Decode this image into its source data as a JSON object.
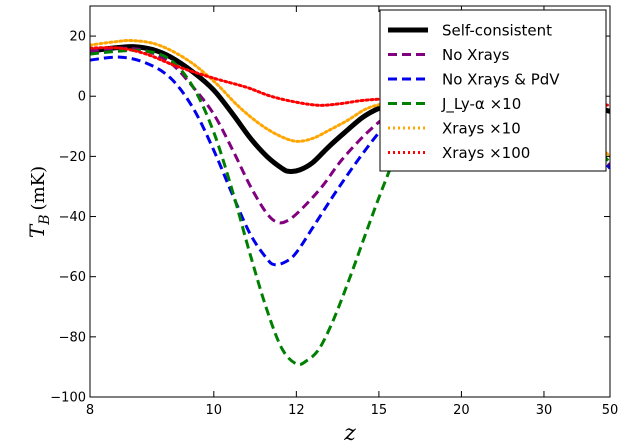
{
  "chart_data": {
    "type": "line",
    "x_axis": {
      "label": "z",
      "ticks": [
        8,
        10,
        12,
        15,
        20,
        30,
        50
      ],
      "range": [
        8,
        50
      ],
      "scale": "reciprocal (1/z)"
    },
    "y_axis": {
      "label_main": "T",
      "label_sub": "B",
      "label_unit": "(mK)",
      "ticks": [
        20,
        0,
        -20,
        -40,
        -60,
        -80,
        -100
      ],
      "range": [
        -100,
        30
      ]
    },
    "grid": false,
    "legend": {
      "placement": "top-right"
    },
    "series": [
      {
        "name": "Self-consistent",
        "color": "#000000",
        "style": "solid",
        "width": 5,
        "points": [
          [
            8,
            15
          ],
          [
            8.3,
            16
          ],
          [
            8.6,
            16.5
          ],
          [
            8.9,
            15.5
          ],
          [
            9.2,
            13
          ],
          [
            9.6,
            8
          ],
          [
            10,
            2
          ],
          [
            10.4,
            -6
          ],
          [
            10.8,
            -14
          ],
          [
            11.2,
            -20
          ],
          [
            11.6,
            -24
          ],
          [
            11.8,
            -25
          ],
          [
            12.1,
            -24.5
          ],
          [
            12.5,
            -22
          ],
          [
            13,
            -17
          ],
          [
            13.6,
            -12
          ],
          [
            14.3,
            -7
          ],
          [
            15,
            -4
          ],
          [
            16,
            -1.5
          ],
          [
            17,
            -0.5
          ],
          [
            18.5,
            0
          ],
          [
            20,
            0
          ],
          [
            25,
            -0.5
          ],
          [
            30,
            -1
          ],
          [
            40,
            -3
          ],
          [
            50,
            -5
          ]
        ]
      },
      {
        "name": "No Xrays",
        "color": "#800080",
        "style": "dashed",
        "width": 3,
        "points": [
          [
            8,
            15
          ],
          [
            8.4,
            16
          ],
          [
            8.8,
            15
          ],
          [
            9.2,
            11
          ],
          [
            9.6,
            3
          ],
          [
            10,
            -6
          ],
          [
            10.4,
            -18
          ],
          [
            10.8,
            -30
          ],
          [
            11.2,
            -39
          ],
          [
            11.5,
            -42
          ],
          [
            11.8,
            -41
          ],
          [
            12.2,
            -37
          ],
          [
            12.8,
            -30
          ],
          [
            13.5,
            -21
          ],
          [
            14.5,
            -12
          ],
          [
            15.5,
            -6
          ],
          [
            16.5,
            -3
          ],
          [
            18,
            -1
          ],
          [
            20,
            0
          ],
          [
            30,
            -1
          ],
          [
            50,
            -23
          ]
        ]
      },
      {
        "name": "No Xrays & PdV",
        "color": "#0000ee",
        "style": "dashed",
        "width": 3,
        "points": [
          [
            8,
            12
          ],
          [
            8.4,
            13
          ],
          [
            8.8,
            11
          ],
          [
            9.2,
            6
          ],
          [
            9.6,
            -4
          ],
          [
            10,
            -18
          ],
          [
            10.4,
            -33
          ],
          [
            10.8,
            -46
          ],
          [
            11.2,
            -54
          ],
          [
            11.4,
            -56
          ],
          [
            11.7,
            -55
          ],
          [
            12,
            -52
          ],
          [
            12.6,
            -42
          ],
          [
            13.4,
            -30
          ],
          [
            14.4,
            -18
          ],
          [
            15.4,
            -9
          ],
          [
            16.5,
            -4
          ],
          [
            18,
            -1
          ],
          [
            20,
            0
          ],
          [
            30,
            -1
          ],
          [
            50,
            -24
          ]
        ]
      },
      {
        "name": "J_Ly-α ×10",
        "color": "#008000",
        "style": "dashed",
        "width": 3,
        "points": [
          [
            8,
            14
          ],
          [
            8.4,
            15
          ],
          [
            8.8,
            15
          ],
          [
            9.2,
            12
          ],
          [
            9.6,
            3
          ],
          [
            10,
            -12
          ],
          [
            10.4,
            -32
          ],
          [
            10.8,
            -53
          ],
          [
            11.2,
            -71
          ],
          [
            11.6,
            -84
          ],
          [
            12,
            -89
          ],
          [
            12.3,
            -88
          ],
          [
            12.7,
            -84
          ],
          [
            13.2,
            -74
          ],
          [
            13.8,
            -60
          ],
          [
            14.5,
            -44
          ],
          [
            15.2,
            -30
          ],
          [
            16,
            -17
          ],
          [
            17,
            -8
          ],
          [
            18.5,
            -2
          ],
          [
            20,
            0
          ],
          [
            30,
            -1
          ],
          [
            50,
            -22
          ]
        ]
      },
      {
        "name": "Xrays ×10",
        "color": "#ffa500",
        "style": "dotted",
        "width": 3,
        "points": [
          [
            8,
            17
          ],
          [
            8.3,
            18
          ],
          [
            8.6,
            18.5
          ],
          [
            9,
            17
          ],
          [
            9.5,
            12
          ],
          [
            10,
            5
          ],
          [
            10.5,
            -3
          ],
          [
            11,
            -9
          ],
          [
            11.5,
            -13
          ],
          [
            12,
            -15
          ],
          [
            12.5,
            -14
          ],
          [
            13,
            -11.5
          ],
          [
            13.7,
            -8
          ],
          [
            14.5,
            -4
          ],
          [
            15.5,
            -2
          ],
          [
            17,
            0
          ],
          [
            20,
            0
          ],
          [
            30,
            -1
          ],
          [
            50,
            -20
          ]
        ]
      },
      {
        "name": "Xrays ×100",
        "color": "#ff0000",
        "style": "dotted",
        "width": 3,
        "points": [
          [
            8,
            16
          ],
          [
            8.4,
            16
          ],
          [
            8.8,
            14
          ],
          [
            9.3,
            10
          ],
          [
            10,
            6
          ],
          [
            10.7,
            3
          ],
          [
            11.3,
            0
          ],
          [
            12,
            -2
          ],
          [
            12.7,
            -3
          ],
          [
            13.4,
            -2.5
          ],
          [
            14.2,
            -1.5
          ],
          [
            15,
            -1
          ],
          [
            16,
            -1
          ],
          [
            17,
            -0.5
          ],
          [
            18.5,
            -0.5
          ],
          [
            20,
            0
          ],
          [
            30,
            -1
          ],
          [
            50,
            -3
          ]
        ]
      }
    ]
  }
}
